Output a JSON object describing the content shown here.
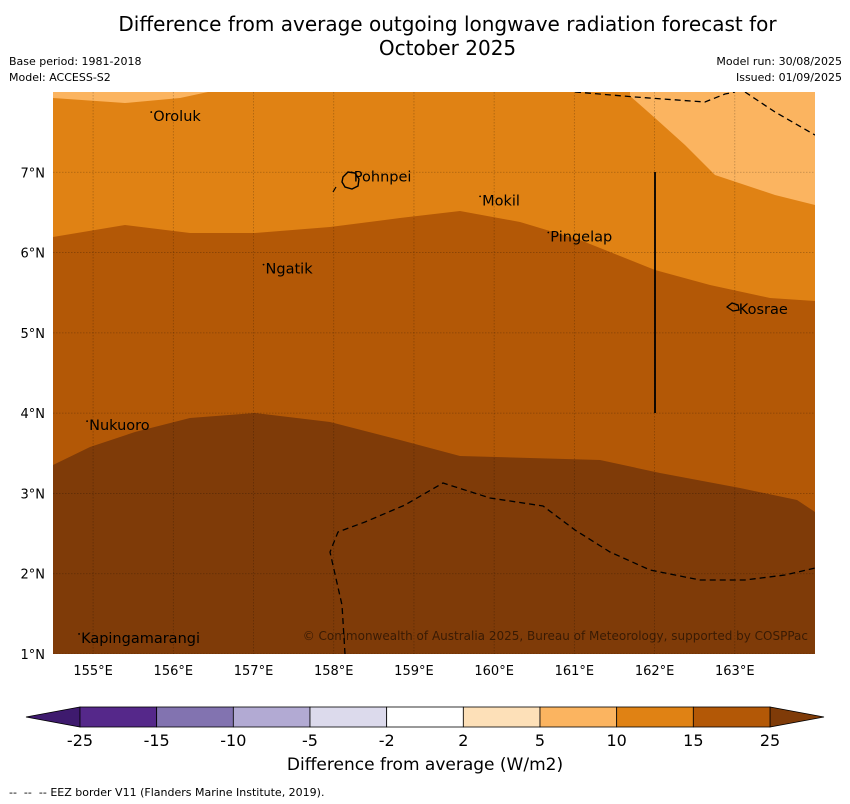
{
  "title_line1": "Difference from average outgoing longwave radiation forecast for",
  "title_line2": "October 2025",
  "meta": {
    "base_period": "Base period: 1981-2018",
    "model": "Model: ACCESS-S2",
    "model_run": "Model run: 30/08/2025",
    "issued": "Issued: 01/09/2025"
  },
  "map": {
    "lon_range": [
      154.5,
      164.0
    ],
    "lat_range": [
      1.0,
      8.0
    ],
    "lon_ticks": [
      "155°E",
      "156°E",
      "157°E",
      "158°E",
      "159°E",
      "160°E",
      "161°E",
      "162°E",
      "163°E"
    ],
    "lat_ticks": [
      "1°N",
      "2°N",
      "3°N",
      "4°N",
      "5°N",
      "6°N",
      "7°N"
    ],
    "places": [
      {
        "name": "Oroluk",
        "lon": 155.75,
        "lat": 7.7
      },
      {
        "name": "Pohnpei",
        "lon": 158.25,
        "lat": 6.95
      },
      {
        "name": "Mokil",
        "lon": 159.85,
        "lat": 6.65
      },
      {
        "name": "Pingelap",
        "lon": 160.7,
        "lat": 6.2
      },
      {
        "name": "Ngatik",
        "lon": 157.15,
        "lat": 5.8
      },
      {
        "name": "Kosrae",
        "lon": 163.05,
        "lat": 5.3
      },
      {
        "name": "Nukuoro",
        "lon": 154.95,
        "lat": 3.85
      },
      {
        "name": "Kapingamarangi",
        "lon": 154.85,
        "lat": 1.2
      }
    ],
    "copyright": "© Commonwealth of Australia 2025, Bureau of Meteorology, supported by COSPPac"
  },
  "colorbar": {
    "ticks": [
      "-25",
      "-15",
      "-10",
      "-5",
      "-2",
      "2",
      "5",
      "10",
      "15",
      "25"
    ],
    "colors": [
      "#3e1a6e",
      "#55288a",
      "#8273b0",
      "#b2aad3",
      "#dcdaec",
      "#ffffff",
      "#fde0b8",
      "#fbb460",
      "#e08214",
      "#b35806",
      "#7f3b08"
    ],
    "title": "Difference from average (W/m2)"
  },
  "legend_note": "EEZ border V11 (Flanders Marine Institute, 2019)."
}
